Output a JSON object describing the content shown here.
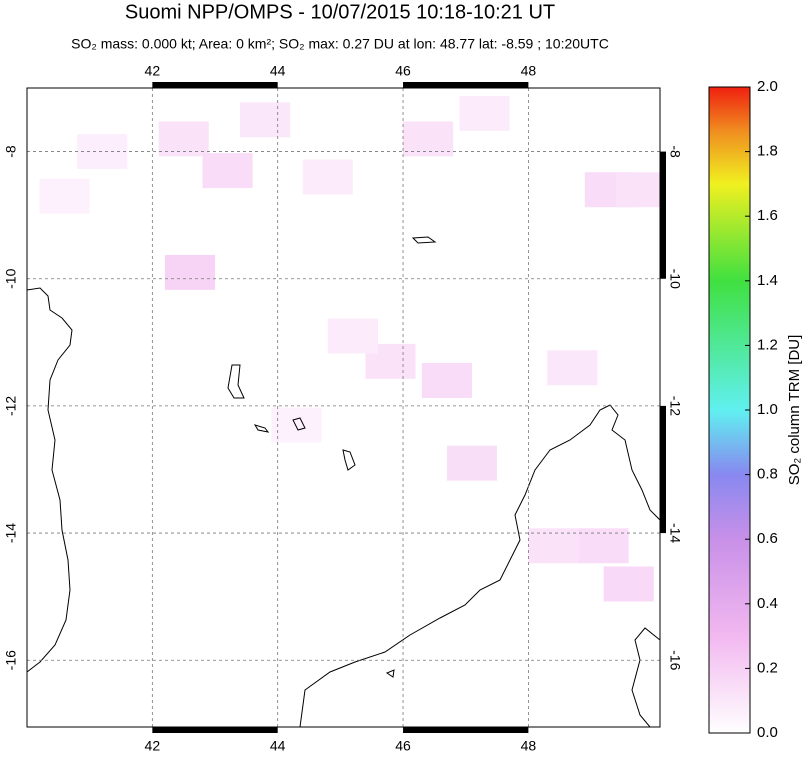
{
  "chart_data": {
    "type": "map",
    "title": "Suomi NPP/OMPS - 10/07/2015 10:18-10:21 UT",
    "subtitle": "SO₂ mass: 0.000 kt; Area: 0 km²; SO₂ max: 0.27 DU at lon: 48.77 lat: -8.59 ; 10:20UTC",
    "xlim": [
      40,
      50.1
    ],
    "ylim": [
      -17.05,
      -7
    ],
    "xticks": [
      42,
      44,
      46,
      48
    ],
    "yticks": [
      -8,
      -10,
      -12,
      -14,
      -16
    ],
    "grid": true,
    "pixels": {
      "lon": [
        42.5,
        43.2,
        43.8,
        46.4,
        47.3,
        49.3,
        49.8,
        42.6,
        45.8,
        46.7,
        47.1,
        48.4,
        49.2,
        49.6,
        45.2,
        44.8,
        41.2,
        40.6,
        48.7,
        44.3
      ],
      "lat": [
        -7.8,
        -8.3,
        -7.5,
        -7.8,
        -7.4,
        -8.6,
        -8.6,
        -9.9,
        -11.3,
        -11.6,
        -12.9,
        -14.2,
        -14.2,
        -14.8,
        -10.9,
        -8.4,
        -8.0,
        -8.7,
        -11.4,
        -12.3
      ],
      "values": [
        0.12,
        0.15,
        0.1,
        0.12,
        0.08,
        0.15,
        0.12,
        0.18,
        0.12,
        0.15,
        0.14,
        0.12,
        0.15,
        0.16,
        0.08,
        0.08,
        0.07,
        0.06,
        0.1,
        0.06
      ]
    },
    "colorbar": {
      "label": "SO₂ column TRM [DU]",
      "lim": [
        0,
        2
      ],
      "ticks": [
        {
          "value": 0,
          "label": "0.0"
        },
        0.2,
        0.4,
        0.6,
        0.8,
        {
          "value": 1,
          "label": "1.0"
        },
        1.2,
        1.4,
        1.6,
        1.8,
        {
          "value": 2,
          "label": "2.0"
        }
      ]
    }
  }
}
